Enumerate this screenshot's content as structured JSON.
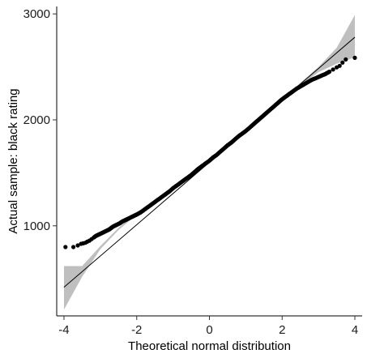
{
  "chart_data": {
    "type": "scatter",
    "subtype": "qq-plot",
    "title": "",
    "xlabel": "Theoretical normal distribution",
    "ylabel": "Actual sample: black rating",
    "xlim": [
      -4.2,
      4.2
    ],
    "ylim": [
      150,
      3070
    ],
    "x_ticks": [
      -4,
      -2,
      0,
      2,
      4
    ],
    "y_ticks": [
      1000,
      2000,
      3000
    ],
    "grid": false,
    "legend": "none",
    "colors": {
      "points": "#000000",
      "ref_line": "#000000",
      "band": "#bfbfbf"
    },
    "reference_line": {
      "x": [
        -4,
        4
      ],
      "y": [
        420,
        2780
      ]
    },
    "confidence_band": {
      "x": [
        -4,
        -3.5,
        -3,
        -2.5,
        -2,
        -1,
        0,
        1,
        2,
        2.5,
        3,
        3.5,
        4
      ],
      "lower": [
        210,
        520,
        780,
        960,
        1105,
        1340,
        1608,
        1890,
        2175,
        2325,
        2450,
        2530,
        2590
      ],
      "upper": [
        620,
        620,
        810,
        980,
        1125,
        1360,
        1625,
        1905,
        2195,
        2350,
        2500,
        2680,
        2990
      ]
    },
    "series": [
      {
        "x": [
          -3.96,
          -3.74,
          -3.62,
          -3.53,
          -3.47,
          -3.41,
          -3.36,
          -3.3,
          -3.24,
          -3.18,
          -3.12,
          -3.06,
          -3.0,
          -2.94,
          -2.88,
          -2.82,
          -2.76,
          -2.7,
          -2.64,
          -2.58,
          -2.52,
          -2.46,
          -2.4,
          -2.34,
          -2.28,
          -2.22,
          -2.16,
          -2.1,
          -2.04,
          -1.98,
          -1.9,
          -1.8,
          -1.7,
          -1.6,
          -1.5,
          -1.4,
          -1.3,
          -1.2,
          -1.1,
          -1.0,
          -0.9,
          -0.8,
          -0.7,
          -0.6,
          -0.5,
          -0.4,
          -0.3,
          -0.2,
          -0.1,
          0.0,
          0.1,
          0.2,
          0.3,
          0.4,
          0.5,
          0.6,
          0.7,
          0.8,
          0.9,
          1.0,
          1.1,
          1.2,
          1.3,
          1.4,
          1.5,
          1.6,
          1.7,
          1.8,
          1.9,
          2.0,
          2.1,
          2.2,
          2.3,
          2.4,
          2.5,
          2.6,
          2.7,
          2.8,
          2.9,
          3.0,
          3.1,
          3.2,
          3.3,
          3.4,
          3.5,
          3.58,
          3.66,
          3.75,
          4.0
        ],
        "y": [
          800,
          800,
          815,
          830,
          835,
          840,
          850,
          860,
          875,
          890,
          905,
          915,
          925,
          935,
          945,
          955,
          965,
          980,
          995,
          1005,
          1015,
          1025,
          1040,
          1050,
          1060,
          1070,
          1080,
          1090,
          1100,
          1110,
          1125,
          1150,
          1175,
          1200,
          1225,
          1250,
          1275,
          1300,
          1325,
          1355,
          1380,
          1405,
          1430,
          1455,
          1480,
          1510,
          1540,
          1565,
          1590,
          1615,
          1645,
          1670,
          1700,
          1730,
          1760,
          1785,
          1815,
          1845,
          1870,
          1895,
          1925,
          1955,
          1985,
          2015,
          2045,
          2075,
          2105,
          2135,
          2165,
          2195,
          2220,
          2245,
          2270,
          2295,
          2315,
          2335,
          2355,
          2375,
          2390,
          2405,
          2420,
          2435,
          2455,
          2475,
          2495,
          2510,
          2540,
          2570,
          2585
        ]
      }
    ]
  }
}
